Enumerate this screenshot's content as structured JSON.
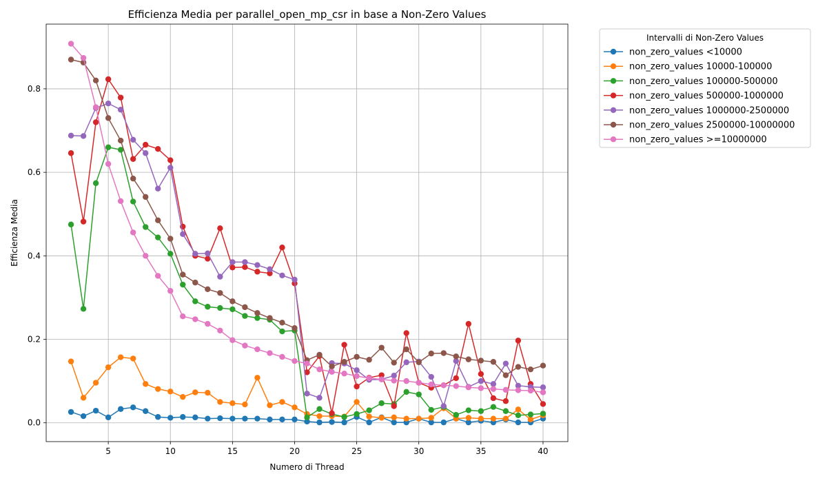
{
  "chart_data": {
    "type": "line",
    "title": "Efficienza Media per parallel_open_mp_csr in base a Non-Zero Values",
    "xlabel": "Numero di Thread",
    "ylabel": "Efficienza Media",
    "xlim": [
      -0.0,
      42.0
    ],
    "ylim": [
      -0.045,
      0.955
    ],
    "xticks": [
      5,
      10,
      15,
      20,
      25,
      30,
      35,
      40
    ],
    "yticks": [
      0.0,
      0.2,
      0.4,
      0.6,
      0.8
    ],
    "xtick_labels": [
      "5",
      "10",
      "15",
      "20",
      "25",
      "30",
      "35",
      "40"
    ],
    "ytick_labels": [
      "0.0",
      "0.2",
      "0.4",
      "0.6",
      "0.8"
    ],
    "grid": true,
    "legend_title": "Intervalli di Non-Zero Values",
    "legend_position": "outside-right-top",
    "x": [
      2,
      3,
      4,
      5,
      6,
      7,
      8,
      9,
      10,
      11,
      12,
      13,
      14,
      15,
      16,
      17,
      18,
      19,
      20,
      21,
      22,
      23,
      24,
      25,
      26,
      27,
      28,
      29,
      30,
      31,
      32,
      33,
      34,
      35,
      36,
      37,
      38,
      39,
      40
    ],
    "series": [
      {
        "name": "non_zero_values <10000",
        "color": "#1f77b4",
        "values": [
          0.026,
          0.016,
          0.029,
          0.013,
          0.033,
          0.037,
          0.028,
          0.014,
          0.012,
          0.014,
          0.013,
          0.01,
          0.011,
          0.01,
          0.01,
          0.01,
          0.008,
          0.008,
          0.008,
          0.003,
          0.001,
          0.002,
          0.001,
          0.014,
          0.001,
          0.013,
          0.001,
          0.001,
          0.01,
          0.001,
          0.001,
          0.01,
          0.001,
          0.005,
          0.001,
          0.008,
          0.001,
          0.001,
          0.01
        ]
      },
      {
        "name": "non_zero_values 10000-100000",
        "color": "#ff7f0e",
        "values": [
          0.147,
          0.06,
          0.096,
          0.133,
          0.157,
          0.154,
          0.093,
          0.081,
          0.075,
          0.062,
          0.073,
          0.072,
          0.05,
          0.047,
          0.044,
          0.108,
          0.042,
          0.05,
          0.037,
          0.021,
          0.016,
          0.016,
          0.015,
          0.05,
          0.015,
          0.012,
          0.013,
          0.01,
          0.01,
          0.012,
          0.035,
          0.01,
          0.012,
          0.01,
          0.01,
          0.01,
          0.032,
          0.008,
          0.018
        ]
      },
      {
        "name": "non_zero_values 100000-500000",
        "color": "#2ca02c",
        "values": [
          0.475,
          0.273,
          0.574,
          0.66,
          0.654,
          0.53,
          0.469,
          0.444,
          0.405,
          0.331,
          0.291,
          0.278,
          0.275,
          0.272,
          0.256,
          0.251,
          0.247,
          0.219,
          0.221,
          0.013,
          0.033,
          0.021,
          0.014,
          0.021,
          0.03,
          0.047,
          0.045,
          0.074,
          0.068,
          0.031,
          0.038,
          0.019,
          0.03,
          0.028,
          0.038,
          0.028,
          0.018,
          0.02,
          0.022
        ]
      },
      {
        "name": "non_zero_values 500000-1000000",
        "color": "#d62728",
        "values": [
          0.646,
          0.482,
          0.72,
          0.823,
          0.779,
          0.632,
          0.666,
          0.656,
          0.629,
          0.47,
          0.4,
          0.393,
          0.466,
          0.372,
          0.373,
          0.362,
          0.358,
          0.42,
          0.334,
          0.121,
          0.16,
          0.023,
          0.187,
          0.087,
          0.108,
          0.114,
          0.04,
          0.215,
          0.096,
          0.084,
          0.09,
          0.107,
          0.237,
          0.117,
          0.059,
          0.052,
          0.197,
          0.093,
          0.045
        ]
      },
      {
        "name": "non_zero_values 1000000-2500000",
        "color": "#9467bd",
        "values": [
          0.688,
          0.687,
          0.754,
          0.765,
          0.75,
          0.678,
          0.646,
          0.561,
          0.611,
          0.452,
          0.405,
          0.406,
          0.35,
          0.385,
          0.385,
          0.378,
          0.368,
          0.353,
          0.343,
          0.07,
          0.06,
          0.143,
          0.142,
          0.126,
          0.103,
          0.104,
          0.113,
          0.145,
          0.147,
          0.11,
          0.04,
          0.148,
          0.086,
          0.1,
          0.093,
          0.142,
          0.089,
          0.086,
          0.085
        ]
      },
      {
        "name": "non_zero_values 2500000-10000000",
        "color": "#8c564b",
        "values": [
          0.87,
          0.863,
          0.82,
          0.73,
          0.676,
          0.585,
          0.541,
          0.485,
          0.441,
          0.355,
          0.336,
          0.32,
          0.311,
          0.291,
          0.277,
          0.263,
          0.251,
          0.24,
          0.227,
          0.15,
          0.163,
          0.135,
          0.146,
          0.158,
          0.151,
          0.18,
          0.144,
          0.176,
          0.145,
          0.166,
          0.167,
          0.159,
          0.152,
          0.149,
          0.146,
          0.114,
          0.134,
          0.128,
          0.137
        ]
      },
      {
        "name": "non_zero_values >=10000000",
        "color": "#e377c2",
        "values": [
          0.908,
          0.874,
          0.756,
          0.62,
          0.531,
          0.456,
          0.4,
          0.352,
          0.316,
          0.255,
          0.248,
          0.237,
          0.221,
          0.198,
          0.185,
          0.176,
          0.167,
          0.158,
          0.148,
          0.142,
          0.128,
          0.122,
          0.118,
          0.112,
          0.107,
          0.104,
          0.101,
          0.1,
          0.096,
          0.092,
          0.09,
          0.088,
          0.085,
          0.083,
          0.081,
          0.079,
          0.078,
          0.077,
          0.073
        ]
      }
    ]
  }
}
